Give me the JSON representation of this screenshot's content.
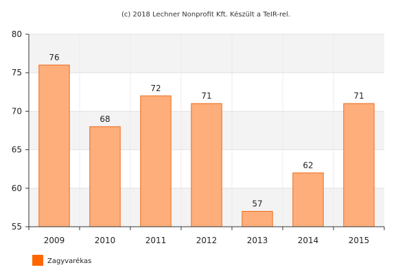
{
  "chart_data": {
    "type": "bar",
    "title": "(c) 2018 Lechner Nonprofit Kft. Készült a TeIR-rel.",
    "categories": [
      "2009",
      "2010",
      "2011",
      "2012",
      "2013",
      "2014",
      "2015"
    ],
    "series": [
      {
        "name": "Zagyvarékas",
        "values": [
          76,
          68,
          72,
          71,
          57,
          62,
          71
        ]
      }
    ],
    "ylim": [
      55,
      80
    ],
    "yticks": [
      55,
      60,
      65,
      70,
      75,
      80
    ],
    "grid": true,
    "legend_position": "bottom-left",
    "colors": {
      "bar_fill": "#fdae7b",
      "bar_stroke": "#ee6a1b",
      "legend_swatch": "#ff6600",
      "band": "#f3f3f3",
      "axis": "#333333"
    }
  }
}
